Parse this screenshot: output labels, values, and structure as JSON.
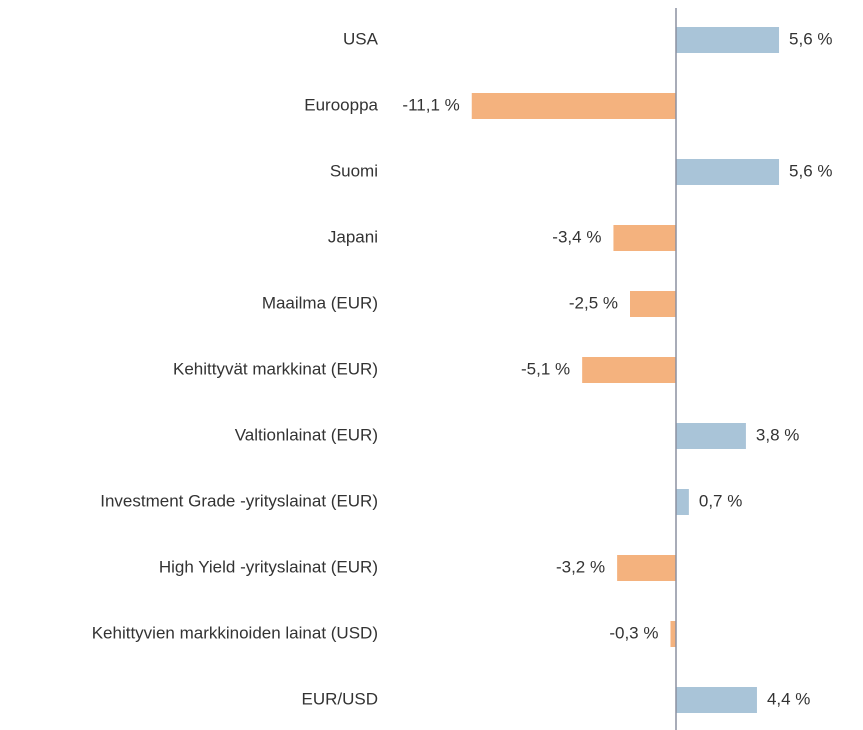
{
  "chart_data": {
    "type": "barh",
    "categories": [
      "USA",
      "Eurooppa",
      "Suomi",
      "Japani",
      "Maailma (EUR)",
      "Kehittyvät markkinat (EUR)",
      "Valtionlainat (EUR)",
      "Investment Grade -yrityslainat (EUR)",
      "High Yield -yrityslainat (EUR)",
      "Kehittyvien markkinoiden lainat (USD)",
      "EUR/USD"
    ],
    "values": [
      5.6,
      -11.1,
      5.6,
      -3.4,
      -2.5,
      -5.1,
      3.8,
      0.7,
      -3.2,
      -0.3,
      4.4
    ],
    "value_labels": [
      "5,6 %",
      "-11,1 %",
      "5,6 %",
      "-3,4 %",
      "-2,5 %",
      "-5,1 %",
      "3,8 %",
      "0,7 %",
      "-3,2 %",
      "-0,3 %",
      "4,4 %"
    ],
    "color_positive": "#a9c4d8",
    "color_negative": "#f4b27e",
    "xlim": [
      -12,
      8
    ]
  }
}
